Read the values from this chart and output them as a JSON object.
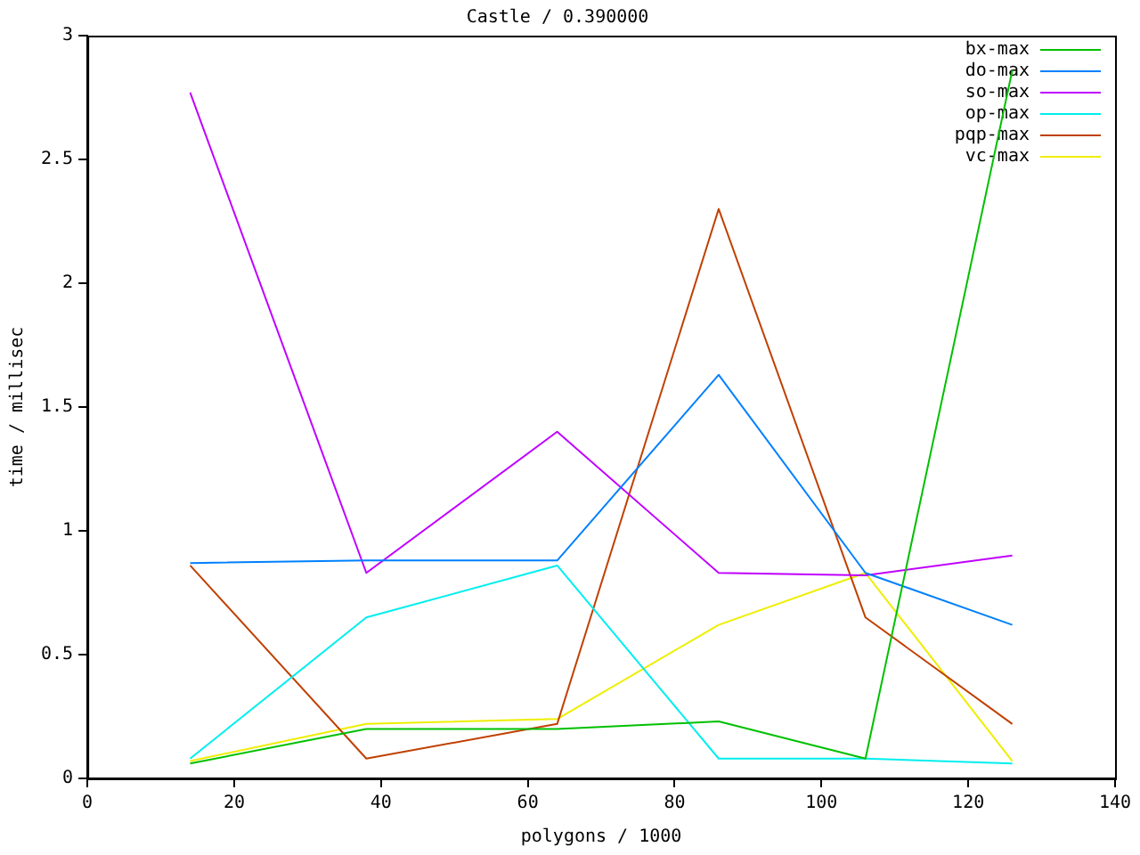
{
  "chart_data": {
    "type": "line",
    "title": "Castle / 0.390000",
    "xlabel": "polygons / 1000",
    "ylabel": "time / millisec",
    "x": [
      14,
      38,
      64,
      86,
      106,
      126
    ],
    "series": [
      {
        "name": "bx-max",
        "color": "#00c000",
        "values": [
          0.06,
          0.2,
          0.2,
          0.23,
          0.08,
          2.86
        ]
      },
      {
        "name": "do-max",
        "color": "#0080ff",
        "values": [
          0.87,
          0.88,
          0.88,
          1.63,
          0.83,
          0.62
        ]
      },
      {
        "name": "so-max",
        "color": "#c000ff",
        "values": [
          2.77,
          0.83,
          1.4,
          0.83,
          0.82,
          0.9
        ]
      },
      {
        "name": "op-max",
        "color": "#00eeee",
        "values": [
          0.08,
          0.65,
          0.86,
          0.08,
          0.08,
          0.06
        ]
      },
      {
        "name": "pqp-max",
        "color": "#c04000",
        "values": [
          0.86,
          0.08,
          0.22,
          2.3,
          0.65,
          0.22
        ]
      },
      {
        "name": "vc-max",
        "color": "#eeee00",
        "values": [
          0.07,
          0.22,
          0.24,
          0.62,
          0.83,
          0.07
        ]
      }
    ],
    "xlim": [
      0,
      140
    ],
    "xticks": [
      0,
      20,
      40,
      60,
      80,
      100,
      120,
      140
    ],
    "ylim": [
      0,
      3
    ],
    "yticks": [
      0,
      0.5,
      1,
      1.5,
      2,
      2.5,
      3
    ],
    "grid": false,
    "legend": "top right",
    "marker": "none",
    "line_style": "solid"
  }
}
